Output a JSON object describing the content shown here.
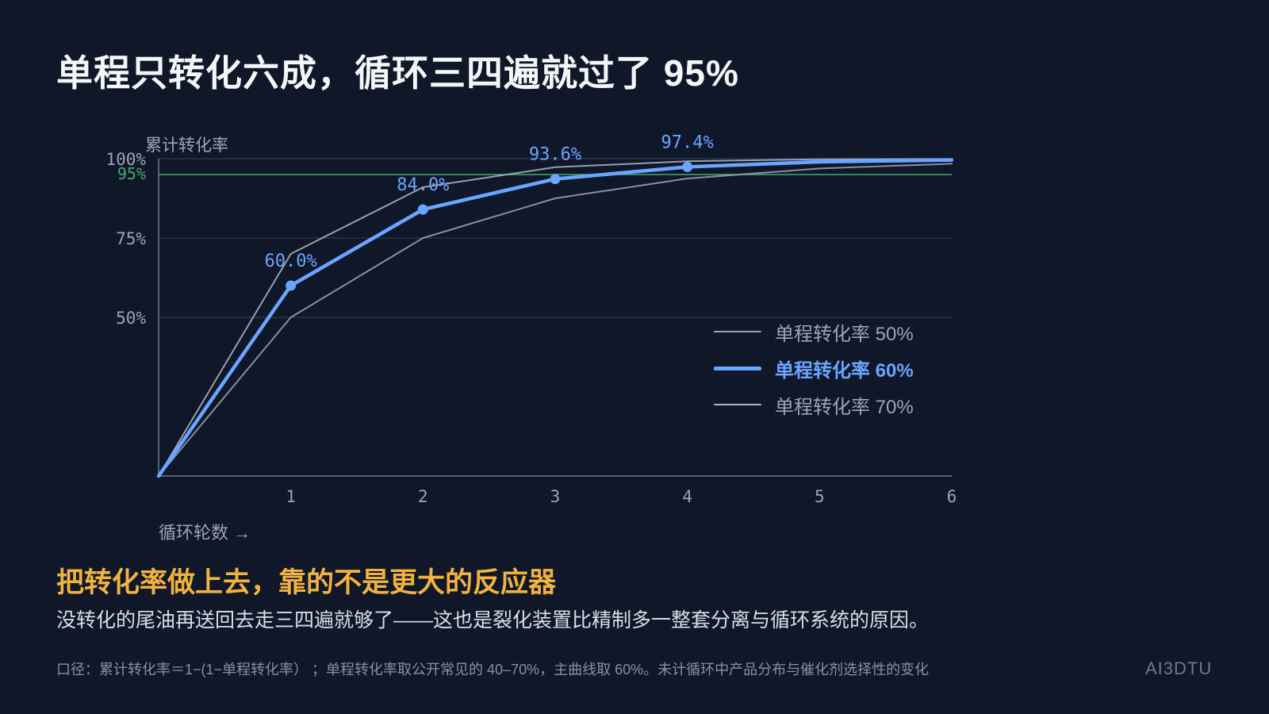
{
  "title": "单程只转化六成，循环三四遍就过了 95%",
  "subtitle": "把转化率做上去，靠的不是更大的反应器",
  "description": "没转化的尾油再送回去走三四遍就够了——这也是裂化装置比精制多一整套分离与循环系统的原因。",
  "footnote": "口径：累计转化率＝1−(1−单程转化率） ；单程转化率取公开常见的 40–70%，主曲线取 60%。未计循环中产品分布与催化剂选择性的变化",
  "brand": "AI3DTU",
  "chart_data": {
    "type": "line",
    "ylabel": "累计转化率",
    "xlabel": "循环轮数 →",
    "x": [
      0,
      1,
      2,
      3,
      4,
      5,
      6
    ],
    "xticks": [
      "1",
      "2",
      "3",
      "4",
      "5",
      "6"
    ],
    "xlim": [
      0,
      6
    ],
    "ylim": [
      0,
      100
    ],
    "yticks": [
      {
        "value": 50,
        "label": "50%"
      },
      {
        "value": 75,
        "label": "75%"
      },
      {
        "value": 100,
        "label": "100%"
      }
    ],
    "reference_line": {
      "value": 95,
      "label": "95%",
      "color": "#3fae6b"
    },
    "grid": true,
    "legend_position": "right",
    "series": [
      {
        "name": "单程转化率 50%",
        "values": [
          0,
          50,
          75,
          87.5,
          93.75,
          96.9,
          98.4
        ],
        "color": "#9aa6b8",
        "main": false
      },
      {
        "name": "单程转化率 60%",
        "values": [
          0,
          60,
          84,
          93.6,
          97.4,
          99.0,
          99.6
        ],
        "color": "#6aa5ff",
        "main": true,
        "point_labels": [
          "",
          "60.0%",
          "84.0%",
          "93.6%",
          "97.4%",
          "",
          ""
        ]
      },
      {
        "name": "单程转化率 70%",
        "values": [
          0,
          70,
          91,
          97.3,
          99.2,
          99.8,
          99.9
        ],
        "color": "#aeb8c8",
        "main": false
      }
    ]
  }
}
